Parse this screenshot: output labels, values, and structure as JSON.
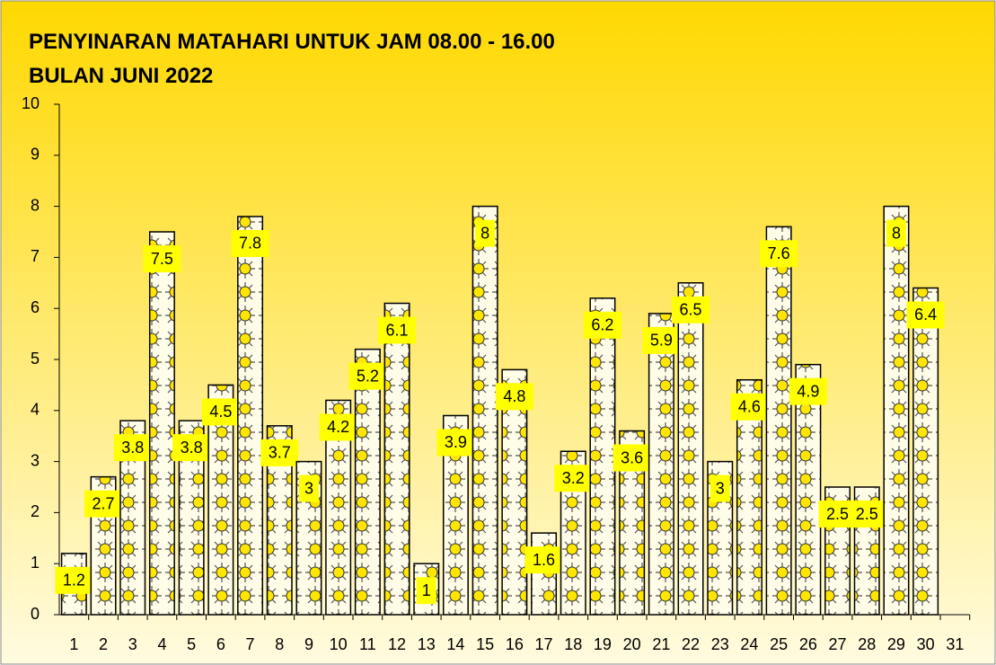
{
  "chart_data": {
    "type": "bar",
    "title": [
      "PENYINARAN MATAHARI UNTUK JAM 08.00 - 16.00",
      "BULAN JUNI 2022"
    ],
    "categories": [
      "1",
      "2",
      "3",
      "4",
      "5",
      "6",
      "7",
      "8",
      "9",
      "10",
      "11",
      "12",
      "13",
      "14",
      "15",
      "16",
      "17",
      "18",
      "19",
      "20",
      "21",
      "22",
      "23",
      "24",
      "25",
      "26",
      "27",
      "28",
      "29",
      "30",
      "31"
    ],
    "values": [
      1.2,
      2.7,
      3.8,
      7.5,
      3.8,
      4.5,
      7.8,
      3.7,
      3,
      4.2,
      5.2,
      6.1,
      1,
      3.9,
      8,
      4.8,
      1.6,
      3.2,
      6.2,
      3.6,
      5.9,
      6.5,
      3,
      4.6,
      7.6,
      4.9,
      2.5,
      2.5,
      8,
      6.4,
      null
    ],
    "color": "#ffe600",
    "ylim": [
      0,
      10
    ],
    "yticks": [
      0,
      1,
      2,
      3,
      4,
      5,
      6,
      7,
      8,
      9,
      10
    ],
    "grid": false
  }
}
